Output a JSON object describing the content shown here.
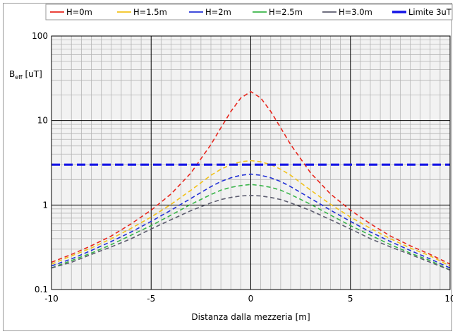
{
  "chart_data": {
    "type": "line",
    "title": "",
    "xlabel": "Distanza dalla mezzeria [m]",
    "ylabel": "B",
    "ylabel_sub": "eff",
    "ylabel_unit": " [uT]",
    "xlim": [
      -10,
      10
    ],
    "ylim": [
      0.1,
      100
    ],
    "yscale": "log",
    "grid": true,
    "legend_position": "top",
    "x_ticks": [
      "-10",
      "-5",
      "0",
      "5",
      "10"
    ],
    "y_ticks": [
      "0.1",
      "1",
      "10",
      "100"
    ],
    "x": [
      -10,
      -9,
      -8,
      -7,
      -6,
      -5,
      -4,
      -3,
      -2,
      -1.5,
      -1,
      -0.5,
      0,
      0.5,
      1,
      1.5,
      2,
      3,
      4,
      5,
      6,
      7,
      8,
      9,
      10
    ],
    "series": [
      {
        "name": "H=0m",
        "color": "#e8271e",
        "style": "dashed",
        "values": [
          0.21,
          0.26,
          0.33,
          0.43,
          0.6,
          0.87,
          1.35,
          2.4,
          5.2,
          8.2,
          12.8,
          18.5,
          22,
          18.5,
          12.8,
          8.2,
          5.2,
          2.4,
          1.35,
          0.87,
          0.6,
          0.43,
          0.33,
          0.26,
          0.2
        ]
      },
      {
        "name": "H=1.5m",
        "color": "#f2c21b",
        "style": "dashed",
        "values": [
          0.2,
          0.25,
          0.31,
          0.4,
          0.53,
          0.72,
          1.02,
          1.5,
          2.25,
          2.65,
          3.0,
          3.25,
          3.35,
          3.25,
          3.0,
          2.65,
          2.25,
          1.5,
          1.02,
          0.72,
          0.53,
          0.4,
          0.31,
          0.25,
          0.19
        ]
      },
      {
        "name": "H=2m",
        "color": "#2432d6",
        "style": "dashed",
        "values": [
          0.19,
          0.23,
          0.29,
          0.37,
          0.48,
          0.64,
          0.87,
          1.2,
          1.65,
          1.9,
          2.1,
          2.25,
          2.32,
          2.25,
          2.1,
          1.9,
          1.65,
          1.2,
          0.87,
          0.64,
          0.48,
          0.37,
          0.29,
          0.23,
          0.18
        ]
      },
      {
        "name": "H=2.5m",
        "color": "#3ab54a",
        "style": "dashed",
        "values": [
          0.18,
          0.22,
          0.27,
          0.34,
          0.44,
          0.57,
          0.76,
          1.02,
          1.33,
          1.5,
          1.62,
          1.7,
          1.75,
          1.7,
          1.62,
          1.5,
          1.33,
          1.02,
          0.76,
          0.57,
          0.44,
          0.34,
          0.27,
          0.22,
          0.17
        ]
      },
      {
        "name": "H=3.0m",
        "color": "#5c5c6e",
        "style": "dashed",
        "values": [
          0.18,
          0.21,
          0.26,
          0.32,
          0.4,
          0.52,
          0.67,
          0.86,
          1.06,
          1.16,
          1.23,
          1.28,
          1.3,
          1.28,
          1.23,
          1.16,
          1.06,
          0.86,
          0.67,
          0.52,
          0.4,
          0.32,
          0.26,
          0.21,
          0.17
        ]
      },
      {
        "name": "Limite 3uT",
        "color": "#1414e6",
        "style": "dashed-thick",
        "values": [
          3,
          3,
          3,
          3,
          3,
          3,
          3,
          3,
          3,
          3,
          3,
          3,
          3,
          3,
          3,
          3,
          3,
          3,
          3,
          3,
          3,
          3,
          3,
          3,
          3
        ]
      }
    ]
  }
}
